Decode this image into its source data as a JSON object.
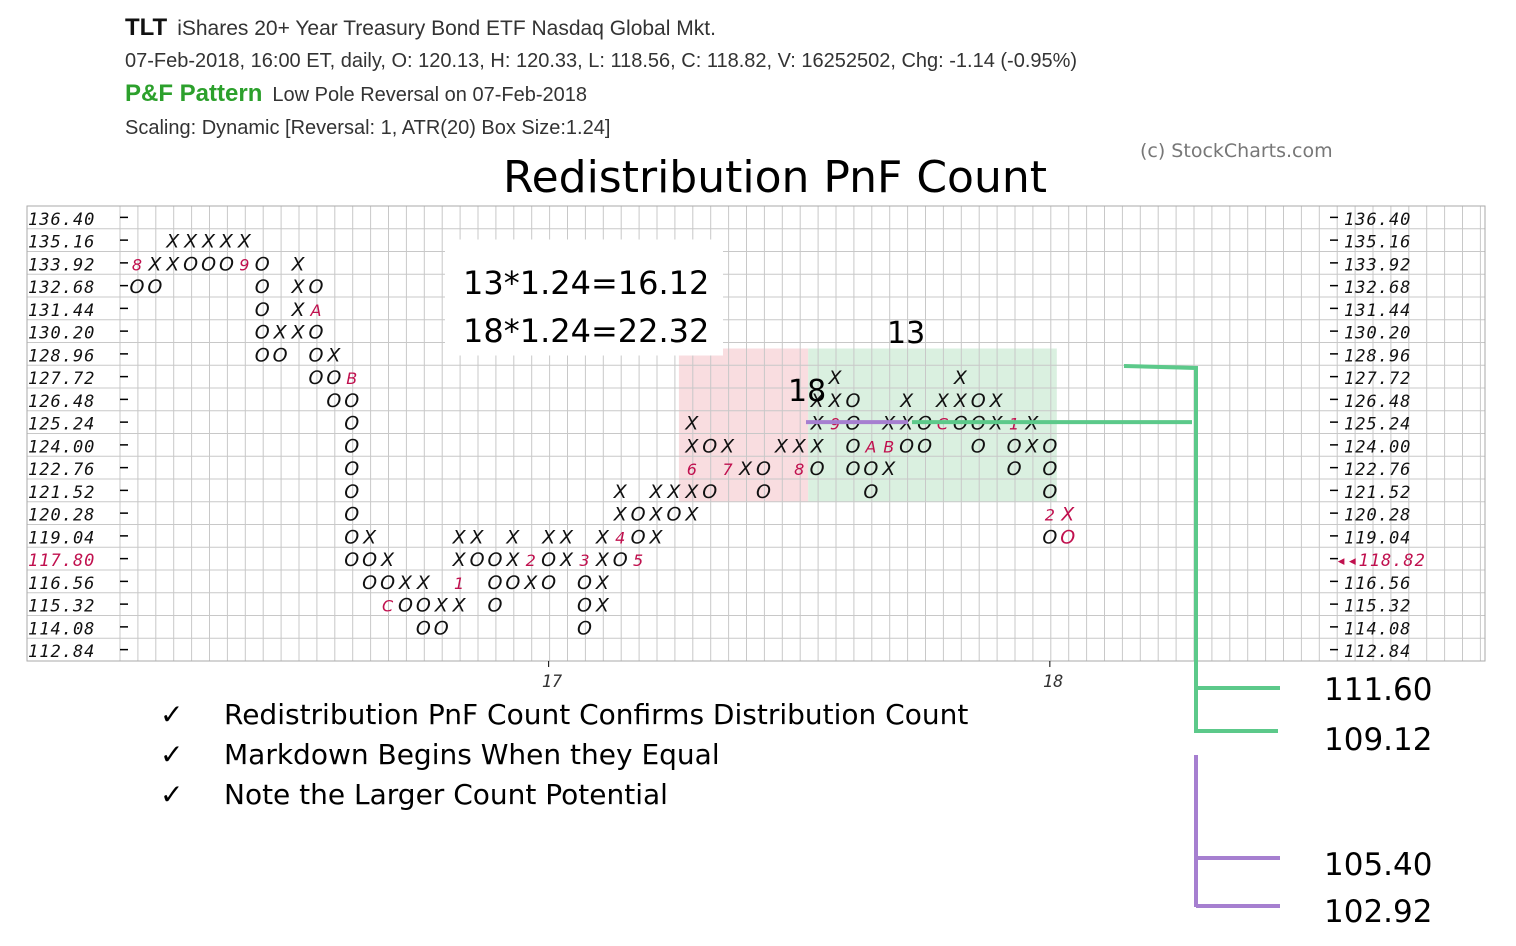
{
  "header": {
    "ticker": "TLT",
    "name": "iShares 20+ Year Treasury Bond ETF  Nasdaq Global Mkt.",
    "quote": "07-Feb-2018, 16:00 ET, daily, O: 120.13, H: 120.33, L: 118.56, C: 118.82, V: 16252502, Chg: -1.14 (-0.95%)",
    "pattern_label": "P&F Pattern",
    "pattern_value": "Low Pole Reversal on 07-Feb-2018",
    "scaling": "Scaling: Dynamic [Reversal: 1, ATR(20) Box Size:1.24]"
  },
  "copyright": "(c) StockCharts.com",
  "chart_data": {
    "type": "point-and-figure",
    "title": "Redistribution PnF Count",
    "box_size": 1.24,
    "price_levels": [
      "136.40",
      "135.16",
      "133.92",
      "132.68",
      "131.44",
      "130.20",
      "128.96",
      "127.72",
      "126.48",
      "125.24",
      "124.00",
      "122.76",
      "121.52",
      "120.28",
      "119.04",
      "117.80",
      "116.56",
      "115.32",
      "114.08",
      "112.84"
    ],
    "right_levels": [
      "136.40",
      "135.16",
      "133.92",
      "132.68",
      "131.44",
      "130.20",
      "128.96",
      "127.72",
      "126.48",
      "125.24",
      "124.00",
      "122.76",
      "121.52",
      "120.28",
      "119.04",
      "118.82",
      "116.56",
      "115.32",
      "114.08",
      "112.84"
    ],
    "left_highlight_level": "117.80",
    "right_highlight_level": "118.82",
    "right_highlight_prefix": "◂◂",
    "x_labels": [
      {
        "label": "17",
        "col": 23
      },
      {
        "label": "18",
        "col": 51
      }
    ],
    "columns": [
      {
        "col": 0,
        "cells": [
          {
            "p": "133.92",
            "m": "8"
          },
          {
            "p": "132.68",
            "m": "O"
          }
        ]
      },
      {
        "col": 1,
        "cells": [
          {
            "p": "133.92",
            "m": "X"
          },
          {
            "p": "132.68",
            "m": "O"
          }
        ]
      },
      {
        "col": 2,
        "cells": [
          {
            "p": "135.16",
            "m": "X"
          },
          {
            "p": "133.92",
            "m": "X"
          }
        ]
      },
      {
        "col": 3,
        "cells": [
          {
            "p": "135.16",
            "m": "X"
          },
          {
            "p": "133.92",
            "m": "O"
          }
        ]
      },
      {
        "col": 4,
        "cells": [
          {
            "p": "135.16",
            "m": "X"
          },
          {
            "p": "133.92",
            "m": "O"
          }
        ]
      },
      {
        "col": 5,
        "cells": [
          {
            "p": "135.16",
            "m": "X"
          },
          {
            "p": "133.92",
            "m": "O"
          }
        ]
      },
      {
        "col": 6,
        "cells": [
          {
            "p": "135.16",
            "m": "X"
          },
          {
            "p": "133.92",
            "m": "9"
          }
        ]
      },
      {
        "col": 7,
        "cells": [
          {
            "p": "133.92",
            "m": "O"
          },
          {
            "p": "132.68",
            "m": "O"
          },
          {
            "p": "131.44",
            "m": "O"
          },
          {
            "p": "130.20",
            "m": "O"
          },
          {
            "p": "128.96",
            "m": "O"
          }
        ]
      },
      {
        "col": 8,
        "cells": [
          {
            "p": "130.20",
            "m": "X"
          },
          {
            "p": "128.96",
            "m": "O"
          }
        ]
      },
      {
        "col": 9,
        "cells": [
          {
            "p": "133.92",
            "m": "X"
          },
          {
            "p": "132.68",
            "m": "X"
          },
          {
            "p": "131.44",
            "m": "X"
          },
          {
            "p": "130.20",
            "m": "X"
          }
        ]
      },
      {
        "col": 10,
        "cells": [
          {
            "p": "132.68",
            "m": "O"
          },
          {
            "p": "131.44",
            "m": "A"
          },
          {
            "p": "130.20",
            "m": "O"
          },
          {
            "p": "128.96",
            "m": "O"
          },
          {
            "p": "127.72",
            "m": "O"
          }
        ]
      },
      {
        "col": 11,
        "cells": [
          {
            "p": "128.96",
            "m": "X"
          },
          {
            "p": "127.72",
            "m": "O"
          },
          {
            "p": "126.48",
            "m": "O"
          }
        ]
      },
      {
        "col": 12,
        "cells": [
          {
            "p": "127.72",
            "m": "B"
          },
          {
            "p": "126.48",
            "m": "O"
          },
          {
            "p": "125.24",
            "m": "O"
          },
          {
            "p": "124.00",
            "m": "O"
          },
          {
            "p": "122.76",
            "m": "O"
          },
          {
            "p": "121.52",
            "m": "O"
          },
          {
            "p": "120.28",
            "m": "O"
          },
          {
            "p": "119.04",
            "m": "O"
          },
          {
            "p": "117.80",
            "m": "O"
          }
        ]
      },
      {
        "col": 13,
        "cells": [
          {
            "p": "119.04",
            "m": "X"
          },
          {
            "p": "117.80",
            "m": "O"
          },
          {
            "p": "116.56",
            "m": "O"
          }
        ]
      },
      {
        "col": 14,
        "cells": [
          {
            "p": "117.80",
            "m": "X"
          },
          {
            "p": "116.56",
            "m": "O"
          },
          {
            "p": "115.32",
            "m": "C"
          }
        ]
      },
      {
        "col": 15,
        "cells": [
          {
            "p": "116.56",
            "m": "X"
          },
          {
            "p": "115.32",
            "m": "O"
          }
        ]
      },
      {
        "col": 16,
        "cells": [
          {
            "p": "116.56",
            "m": "X"
          },
          {
            "p": "115.32",
            "m": "O"
          },
          {
            "p": "114.08",
            "m": "O"
          }
        ]
      },
      {
        "col": 17,
        "cells": [
          {
            "p": "115.32",
            "m": "X"
          },
          {
            "p": "114.08",
            "m": "O"
          }
        ]
      },
      {
        "col": 18,
        "cells": [
          {
            "p": "119.04",
            "m": "X"
          },
          {
            "p": "117.80",
            "m": "X"
          },
          {
            "p": "116.56",
            "m": "1"
          },
          {
            "p": "115.32",
            "m": "X"
          }
        ]
      },
      {
        "col": 19,
        "cells": [
          {
            "p": "119.04",
            "m": "X"
          },
          {
            "p": "117.80",
            "m": "O"
          }
        ]
      },
      {
        "col": 20,
        "cells": [
          {
            "p": "117.80",
            "m": "O"
          },
          {
            "p": "116.56",
            "m": "O"
          },
          {
            "p": "115.32",
            "m": "O"
          }
        ]
      },
      {
        "col": 21,
        "cells": [
          {
            "p": "119.04",
            "m": "X"
          },
          {
            "p": "117.80",
            "m": "X"
          },
          {
            "p": "116.56",
            "m": "O"
          }
        ]
      },
      {
        "col": 22,
        "cells": [
          {
            "p": "117.80",
            "m": "2"
          },
          {
            "p": "116.56",
            "m": "X"
          }
        ]
      },
      {
        "col": 23,
        "cells": [
          {
            "p": "119.04",
            "m": "X"
          },
          {
            "p": "117.80",
            "m": "O"
          },
          {
            "p": "116.56",
            "m": "O"
          }
        ]
      },
      {
        "col": 24,
        "cells": [
          {
            "p": "119.04",
            "m": "X"
          },
          {
            "p": "117.80",
            "m": "X"
          }
        ]
      },
      {
        "col": 25,
        "cells": [
          {
            "p": "117.80",
            "m": "3"
          },
          {
            "p": "116.56",
            "m": "O"
          },
          {
            "p": "115.32",
            "m": "O"
          },
          {
            "p": "114.08",
            "m": "O"
          }
        ]
      },
      {
        "col": 26,
        "cells": [
          {
            "p": "119.04",
            "m": "X"
          },
          {
            "p": "117.80",
            "m": "X"
          },
          {
            "p": "116.56",
            "m": "X"
          },
          {
            "p": "115.32",
            "m": "X"
          }
        ]
      },
      {
        "col": 27,
        "cells": [
          {
            "p": "121.52",
            "m": "X"
          },
          {
            "p": "120.28",
            "m": "X"
          },
          {
            "p": "119.04",
            "m": "4"
          },
          {
            "p": "117.80",
            "m": "O"
          }
        ]
      },
      {
        "col": 28,
        "cells": [
          {
            "p": "120.28",
            "m": "O"
          },
          {
            "p": "119.04",
            "m": "O"
          },
          {
            "p": "117.80",
            "m": "5"
          }
        ]
      },
      {
        "col": 29,
        "cells": [
          {
            "p": "121.52",
            "m": "X"
          },
          {
            "p": "120.28",
            "m": "X"
          },
          {
            "p": "119.04",
            "m": "X"
          }
        ]
      },
      {
        "col": 30,
        "cells": [
          {
            "p": "121.52",
            "m": "X"
          },
          {
            "p": "120.28",
            "m": "O"
          }
        ]
      },
      {
        "col": 31,
        "cells": [
          {
            "p": "125.24",
            "m": "X"
          },
          {
            "p": "124.00",
            "m": "X"
          },
          {
            "p": "122.76",
            "m": "6"
          },
          {
            "p": "121.52",
            "m": "X"
          },
          {
            "p": "120.28",
            "m": "X"
          }
        ]
      },
      {
        "col": 32,
        "cells": [
          {
            "p": "124.00",
            "m": "O"
          },
          {
            "p": "121.52",
            "m": "O"
          }
        ]
      },
      {
        "col": 33,
        "cells": [
          {
            "p": "124.00",
            "m": "X"
          },
          {
            "p": "122.76",
            "m": "7"
          }
        ]
      },
      {
        "col": 34,
        "cells": [
          {
            "p": "122.76",
            "m": "X"
          }
        ]
      },
      {
        "col": 35,
        "cells": [
          {
            "p": "122.76",
            "m": "O"
          },
          {
            "p": "121.52",
            "m": "O"
          }
        ]
      },
      {
        "col": 36,
        "cells": [
          {
            "p": "124.00",
            "m": "X"
          }
        ]
      },
      {
        "col": 37,
        "cells": [
          {
            "p": "124.00",
            "m": "X"
          },
          {
            "p": "122.76",
            "m": "8"
          }
        ]
      },
      {
        "col": 38,
        "cells": [
          {
            "p": "126.48",
            "m": "X"
          },
          {
            "p": "125.24",
            "m": "X"
          },
          {
            "p": "124.00",
            "m": "X"
          },
          {
            "p": "122.76",
            "m": "O"
          }
        ]
      },
      {
        "col": 39,
        "cells": [
          {
            "p": "127.72",
            "m": "X"
          },
          {
            "p": "126.48",
            "m": "X"
          },
          {
            "p": "125.24",
            "m": "9"
          }
        ]
      },
      {
        "col": 40,
        "cells": [
          {
            "p": "126.48",
            "m": "O"
          },
          {
            "p": "125.24",
            "m": "O"
          },
          {
            "p": "124.00",
            "m": "O"
          },
          {
            "p": "122.76",
            "m": "O"
          }
        ]
      },
      {
        "col": 41,
        "cells": [
          {
            "p": "124.00",
            "m": "A"
          },
          {
            "p": "122.76",
            "m": "O"
          },
          {
            "p": "121.52",
            "m": "O"
          }
        ]
      },
      {
        "col": 42,
        "cells": [
          {
            "p": "125.24",
            "m": "X"
          },
          {
            "p": "124.00",
            "m": "B"
          },
          {
            "p": "122.76",
            "m": "X"
          }
        ]
      },
      {
        "col": 43,
        "cells": [
          {
            "p": "126.48",
            "m": "X"
          },
          {
            "p": "125.24",
            "m": "X"
          },
          {
            "p": "124.00",
            "m": "O"
          }
        ]
      },
      {
        "col": 44,
        "cells": [
          {
            "p": "125.24",
            "m": "O"
          },
          {
            "p": "124.00",
            "m": "O"
          }
        ]
      },
      {
        "col": 45,
        "cells": [
          {
            "p": "126.48",
            "m": "X"
          },
          {
            "p": "125.24",
            "m": "C"
          }
        ]
      },
      {
        "col": 46,
        "cells": [
          {
            "p": "127.72",
            "m": "X"
          },
          {
            "p": "126.48",
            "m": "X"
          },
          {
            "p": "125.24",
            "m": "O"
          }
        ]
      },
      {
        "col": 47,
        "cells": [
          {
            "p": "126.48",
            "m": "O"
          },
          {
            "p": "125.24",
            "m": "O"
          },
          {
            "p": "124.00",
            "m": "O"
          }
        ]
      },
      {
        "col": 48,
        "cells": [
          {
            "p": "126.48",
            "m": "X"
          },
          {
            "p": "125.24",
            "m": "X"
          }
        ]
      },
      {
        "col": 49,
        "cells": [
          {
            "p": "125.24",
            "m": "1"
          },
          {
            "p": "124.00",
            "m": "O"
          },
          {
            "p": "122.76",
            "m": "O"
          }
        ]
      },
      {
        "col": 50,
        "cells": [
          {
            "p": "125.24",
            "m": "X"
          },
          {
            "p": "124.00",
            "m": "X"
          }
        ]
      },
      {
        "col": 51,
        "cells": [
          {
            "p": "124.00",
            "m": "O"
          },
          {
            "p": "122.76",
            "m": "O"
          },
          {
            "p": "121.52",
            "m": "O"
          },
          {
            "p": "120.28",
            "m": "2"
          },
          {
            "p": "119.04",
            "m": "O"
          }
        ]
      },
      {
        "col": 52,
        "cells": [
          {
            "p": "120.28",
            "m": "X"
          },
          {
            "p": "119.04",
            "m": "O"
          }
        ]
      }
    ],
    "annotations": {
      "formula_lines": [
        "13*1.24=16.12",
        "18*1.24=22.32"
      ],
      "count_labels": [
        "18",
        "13"
      ],
      "right_targets": {
        "green": [
          "111.60",
          "109.12"
        ],
        "purple": [
          "105.40",
          "102.92"
        ]
      }
    }
  },
  "notes": {
    "check_glyph": "✓",
    "items": [
      "Redistribution PnF Count Confirms Distribution Count",
      "Markdown Begins When they Equal",
      "Note the Larger Count Potential"
    ]
  },
  "colors": {
    "grid": "#c8c8c8",
    "marker": "#111111",
    "month_marker": "#c0104e",
    "pink_zone": "#f8d7da",
    "green_zone": "#d4edda",
    "green_line": "#5cc98a",
    "purple_line": "#a67fd0",
    "pattern_green": "#2ca02c"
  }
}
